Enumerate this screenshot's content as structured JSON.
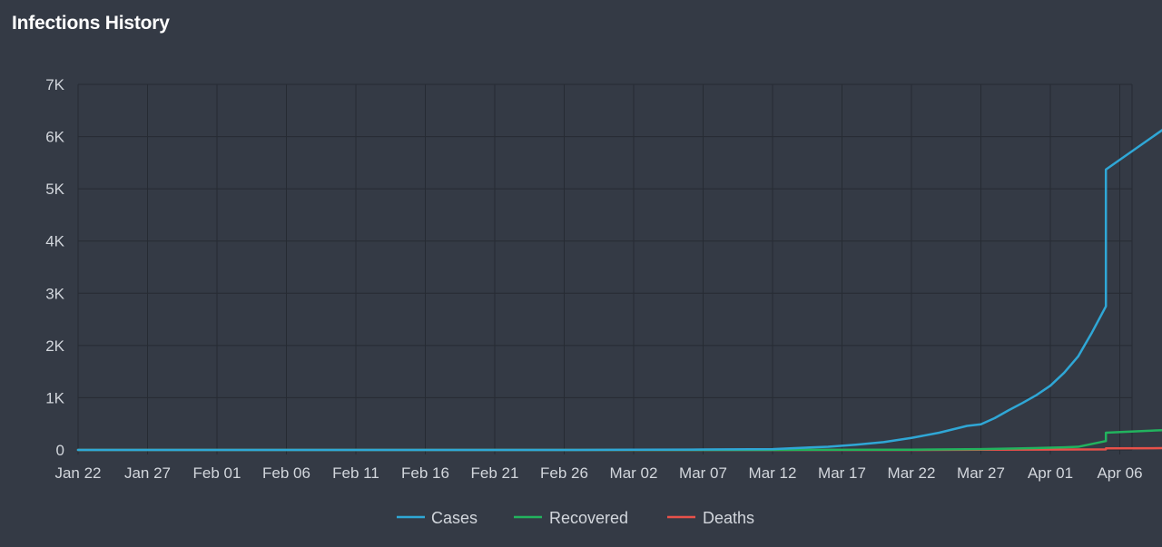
{
  "chart_data": {
    "type": "line",
    "title": "Infections History",
    "xlabel": "",
    "ylabel": "",
    "ylim": [
      0,
      7000
    ],
    "y_ticks": [
      {
        "value": 0,
        "label": "0"
      },
      {
        "value": 1000,
        "label": "1K"
      },
      {
        "value": 2000,
        "label": "2K"
      },
      {
        "value": 3000,
        "label": "3K"
      },
      {
        "value": 4000,
        "label": "4K"
      },
      {
        "value": 5000,
        "label": "5K"
      },
      {
        "value": 6000,
        "label": "6K"
      },
      {
        "value": 7000,
        "label": "7K"
      }
    ],
    "x_start": "Jan 22",
    "x_end": "Apr 06",
    "x_tick_labels": [
      "Jan 22",
      "Jan 27",
      "Feb 01",
      "Feb 06",
      "Feb 11",
      "Feb 16",
      "Feb 21",
      "Feb 26",
      "Mar 02",
      "Mar 07",
      "Mar 12",
      "Mar 17",
      "Mar 22",
      "Mar 27",
      "Apr 01",
      "Apr 06"
    ],
    "grid": true,
    "legend_position": "bottom",
    "series": [
      {
        "name": "Cases",
        "color": "#2fa7d6",
        "points": [
          [
            "Jan 22",
            0
          ],
          [
            "Feb 26",
            0
          ],
          [
            "Mar 02",
            5
          ],
          [
            "Mar 07",
            8
          ],
          [
            "Mar 12",
            15
          ],
          [
            "Mar 14",
            40
          ],
          [
            "Mar 16",
            60
          ],
          [
            "Mar 18",
            100
          ],
          [
            "Mar 20",
            150
          ],
          [
            "Mar 22",
            230
          ],
          [
            "Mar 24",
            330
          ],
          [
            "Mar 26",
            460
          ],
          [
            "Mar 27",
            490
          ],
          [
            "Mar 28",
            610
          ],
          [
            "Mar 29",
            760
          ],
          [
            "Mar 30",
            900
          ],
          [
            "Mar 31",
            1050
          ],
          [
            "Apr 01",
            1230
          ],
          [
            "Apr 02",
            1480
          ],
          [
            "Apr 03",
            1790
          ],
          [
            "Apr 04",
            2250
          ],
          [
            "Apr 05",
            2750
          ],
          [
            "Apr 05",
            5370
          ],
          [
            "Apr 10",
            6300
          ]
        ]
      },
      {
        "name": "Recovered",
        "color": "#22b35e",
        "points": [
          [
            "Jan 22",
            0
          ],
          [
            "Mar 12",
            0
          ],
          [
            "Mar 22",
            5
          ],
          [
            "Mar 27",
            15
          ],
          [
            "Mar 30",
            30
          ],
          [
            "Apr 02",
            50
          ],
          [
            "Apr 03",
            60
          ],
          [
            "Apr 05",
            170
          ],
          [
            "Apr 05",
            330
          ],
          [
            "Apr 10",
            390
          ]
        ]
      },
      {
        "name": "Deaths",
        "color": "#e8514a",
        "points": [
          [
            "Jan 22",
            0
          ],
          [
            "Mar 22",
            0
          ],
          [
            "Mar 27",
            5
          ],
          [
            "Apr 05",
            10
          ],
          [
            "Apr 05",
            30
          ],
          [
            "Apr 10",
            35
          ]
        ]
      }
    ]
  }
}
